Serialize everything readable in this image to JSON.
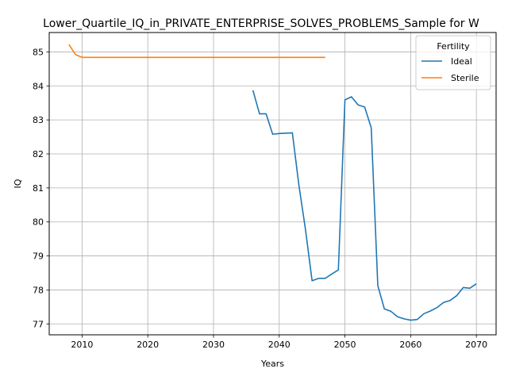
{
  "chart_data": {
    "type": "line",
    "title": "Lower_Quartile_IQ_in_PRIVATE_ENTERPRISE_SOLVES_PROBLEMS_Sample for W",
    "xlabel": "Years",
    "ylabel": "IQ",
    "xlim": [
      2005,
      2073
    ],
    "ylim": [
      76.68,
      85.57
    ],
    "xticks": [
      2010,
      2020,
      2030,
      2040,
      2050,
      2060,
      2070
    ],
    "yticks": [
      77,
      78,
      79,
      80,
      81,
      82,
      83,
      84,
      85
    ],
    "grid": true,
    "legend": {
      "title": "Fertility",
      "placement": "upper right"
    },
    "series": [
      {
        "name": "Ideal",
        "color": "#1f77b4",
        "x": [
          2036,
          2037,
          2038,
          2039,
          2040,
          2041,
          2042,
          2043,
          2044,
          2045,
          2046,
          2047,
          2048,
          2049,
          2050,
          2051,
          2052,
          2053,
          2054,
          2055,
          2056,
          2057,
          2058,
          2059,
          2060,
          2061,
          2062,
          2063,
          2064,
          2065,
          2066,
          2067,
          2068,
          2069,
          2070
        ],
        "y": [
          83.87,
          83.18,
          83.18,
          82.58,
          82.6,
          82.61,
          82.62,
          81.07,
          79.77,
          78.27,
          78.34,
          78.34,
          78.47,
          78.59,
          83.59,
          83.68,
          83.44,
          83.38,
          82.77,
          78.13,
          77.44,
          77.37,
          77.21,
          77.15,
          77.11,
          77.13,
          77.3,
          77.38,
          77.48,
          77.63,
          77.69,
          77.83,
          78.07,
          78.05,
          78.18
        ]
      },
      {
        "name": "Sterile",
        "color": "#ff7f0e",
        "x": [
          2008,
          2009,
          2010,
          2011,
          2012,
          2013,
          2014,
          2015,
          2016,
          2017,
          2018,
          2019,
          2020,
          2021,
          2022,
          2023,
          2024,
          2025,
          2026,
          2027,
          2028,
          2029,
          2030,
          2031,
          2032,
          2033,
          2034,
          2035,
          2036,
          2037,
          2038,
          2039,
          2040,
          2041,
          2042,
          2043,
          2044,
          2045,
          2046,
          2047
        ],
        "y": [
          85.22,
          84.92,
          84.84,
          84.84,
          84.84,
          84.84,
          84.84,
          84.84,
          84.84,
          84.84,
          84.84,
          84.84,
          84.84,
          84.84,
          84.84,
          84.84,
          84.84,
          84.84,
          84.84,
          84.84,
          84.84,
          84.84,
          84.84,
          84.84,
          84.84,
          84.84,
          84.84,
          84.84,
          84.84,
          84.84,
          84.84,
          84.84,
          84.84,
          84.84,
          84.84,
          84.84,
          84.84,
          84.84,
          84.84,
          84.84
        ]
      }
    ]
  }
}
